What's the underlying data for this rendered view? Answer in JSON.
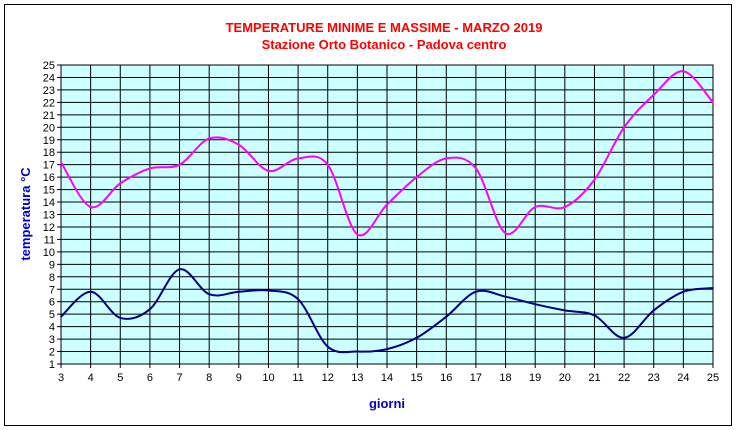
{
  "chart_data": {
    "type": "line",
    "title": "TEMPERATURE MINIME E MASSIME  - MARZO 2019",
    "subtitle": "Stazione Orto Botanico - Padova centro",
    "xlabel": "giorni",
    "ylabel": "temperatura °C",
    "xlim": [
      3,
      25
    ],
    "ylim": [
      1,
      25
    ],
    "x_ticks": [
      3,
      4,
      5,
      6,
      7,
      8,
      9,
      10,
      11,
      12,
      13,
      14,
      15,
      16,
      17,
      18,
      19,
      20,
      21,
      22,
      23,
      24,
      25
    ],
    "y_ticks": [
      1,
      2,
      3,
      4,
      5,
      6,
      7,
      8,
      9,
      10,
      11,
      12,
      13,
      14,
      15,
      16,
      17,
      18,
      19,
      20,
      21,
      22,
      23,
      24,
      25
    ],
    "grid": true,
    "legend": "none",
    "x": [
      3,
      4,
      5,
      6,
      7,
      8,
      9,
      10,
      11,
      12,
      13,
      14,
      15,
      16,
      17,
      18,
      19,
      20,
      21,
      22,
      23,
      24,
      25
    ],
    "series": [
      {
        "color": "#ff00ff",
        "values": [
          17.2,
          13.6,
          15.5,
          16.7,
          17.0,
          19.1,
          18.6,
          16.5,
          17.5,
          17.0,
          11.4,
          13.8,
          16.0,
          17.5,
          16.7,
          11.5,
          13.6,
          13.6,
          15.8,
          20.0,
          22.6,
          24.5,
          22.0
        ]
      },
      {
        "color": "#000080",
        "values": [
          4.8,
          6.8,
          4.7,
          5.4,
          8.6,
          6.6,
          6.8,
          6.9,
          6.2,
          2.4,
          2.0,
          2.2,
          3.1,
          4.8,
          6.8,
          6.4,
          5.8,
          5.3,
          4.9,
          3.1,
          5.3,
          6.8,
          7.1
        ]
      }
    ],
    "colors": {
      "plot_background": "#ccffff",
      "title": "#ff0000",
      "axis_labels": "#0000cc",
      "grid": "#000000"
    }
  }
}
